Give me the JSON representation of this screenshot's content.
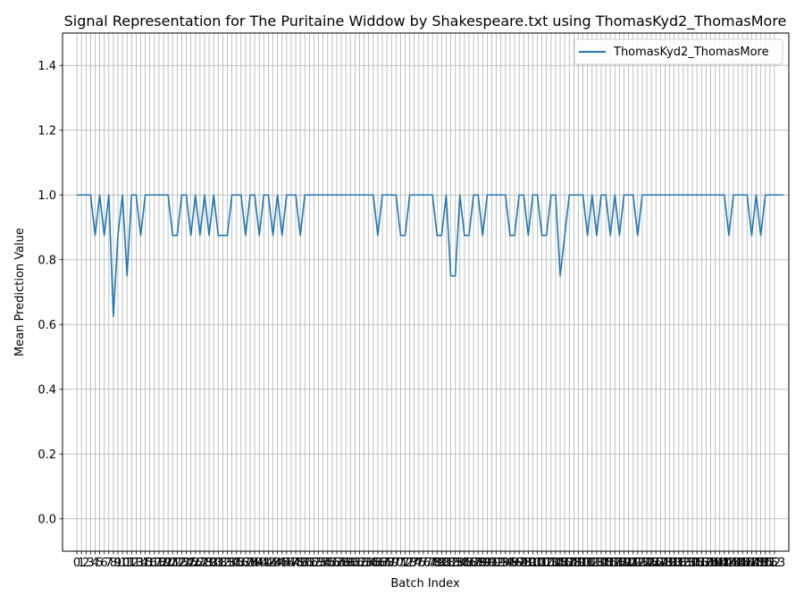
{
  "chart_data": {
    "type": "line",
    "title": "Signal Representation for The Puritaine Widdow by Shakespeare.txt using ThomasKyd2_ThomasMore",
    "xlabel": "Batch Index",
    "ylabel": "Mean Prediction Value",
    "xlim": [
      -3.15,
      156.15
    ],
    "ylim": [
      -0.1,
      1.5
    ],
    "yticks": [
      0.0,
      0.2,
      0.4,
      0.6,
      0.8,
      1.0,
      1.2,
      1.4
    ],
    "xticks_start": 0,
    "xticks_end": 153,
    "grid": true,
    "legend_position": "top-right",
    "series": [
      {
        "name": "ThomasKyd2_ThomasMore",
        "color": "#1f77b4",
        "y": [
          1,
          1,
          1,
          1,
          0.875,
          1,
          0.875,
          1,
          0.625,
          0.875,
          1,
          0.75,
          1,
          1,
          0.875,
          1,
          1,
          1,
          1,
          1,
          1,
          0.875,
          0.875,
          1,
          1,
          0.875,
          1,
          0.875,
          1,
          0.875,
          1,
          0.875,
          0.875,
          0.875,
          1,
          1,
          1,
          0.875,
          1,
          1,
          0.875,
          1,
          1,
          0.875,
          1,
          0.875,
          1,
          1,
          1,
          0.875,
          1,
          1,
          1,
          1,
          1,
          1,
          1,
          1,
          1,
          1,
          1,
          1,
          1,
          1,
          1,
          1,
          0.875,
          1,
          1,
          1,
          1,
          0.875,
          0.875,
          1,
          1,
          1,
          1,
          1,
          1,
          0.875,
          0.875,
          1,
          0.75,
          0.75,
          1,
          0.875,
          0.875,
          1,
          1,
          0.875,
          1,
          1,
          1,
          1,
          1,
          0.875,
          0.875,
          1,
          1,
          0.875,
          1,
          1,
          0.875,
          0.875,
          1,
          1,
          0.75,
          0.875,
          1,
          1,
          1,
          1,
          0.875,
          1,
          0.875,
          1,
          1,
          0.875,
          1,
          0.875,
          1,
          1,
          1,
          0.875,
          1,
          1,
          1,
          1,
          1,
          1,
          1,
          1,
          1,
          1,
          1,
          1,
          1,
          1,
          1,
          1,
          1,
          1,
          1,
          0.875,
          1,
          1,
          1,
          1,
          0.875,
          1,
          0.875,
          1,
          1,
          1,
          1,
          1
        ]
      }
    ]
  }
}
